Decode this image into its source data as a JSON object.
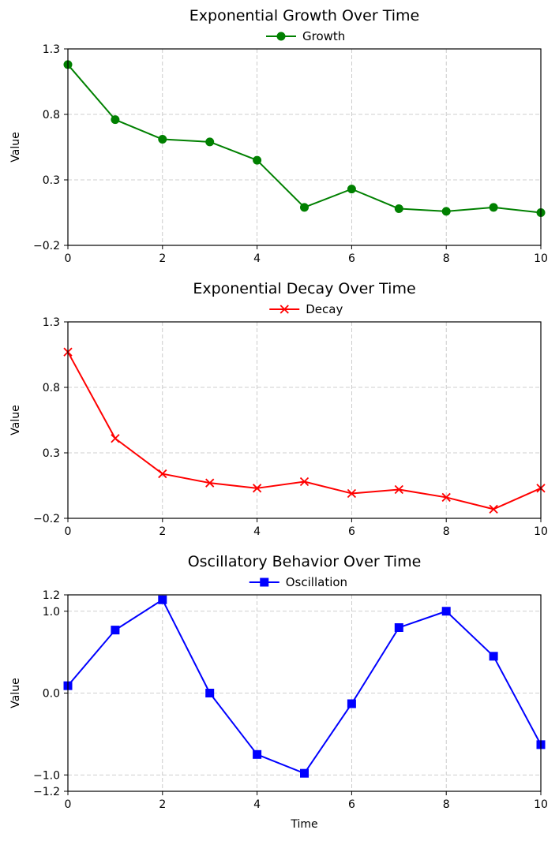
{
  "chart_data": [
    {
      "type": "line",
      "title": "Exponential Growth Over Time",
      "xlabel": "",
      "ylabel": "Value",
      "xlim": [
        0,
        10
      ],
      "ylim": [
        -0.2,
        1.3
      ],
      "xticks": [
        0,
        2,
        4,
        6,
        8,
        10
      ],
      "yticks": [
        -0.2,
        0.3,
        0.8,
        1.3
      ],
      "ytick_labels": [
        "−0.2",
        "0.3",
        "0.8",
        "1.3"
      ],
      "grid": true,
      "legend_position": "top-center",
      "series": [
        {
          "name": "Growth",
          "color": "#008000",
          "marker": "circle",
          "x": [
            0,
            1,
            2,
            3,
            4,
            5,
            6,
            7,
            8,
            9,
            10
          ],
          "y": [
            1.18,
            0.76,
            0.61,
            0.59,
            0.45,
            0.09,
            0.23,
            0.08,
            0.06,
            0.09,
            0.05
          ]
        }
      ]
    },
    {
      "type": "line",
      "title": "Exponential Decay Over Time",
      "xlabel": "",
      "ylabel": "Value",
      "xlim": [
        0,
        10
      ],
      "ylim": [
        -0.2,
        1.3
      ],
      "xticks": [
        0,
        2,
        4,
        6,
        8,
        10
      ],
      "yticks": [
        -0.2,
        0.3,
        0.8,
        1.3
      ],
      "ytick_labels": [
        "−0.2",
        "0.3",
        "0.8",
        "1.3"
      ],
      "grid": true,
      "legend_position": "top-center",
      "series": [
        {
          "name": "Decay",
          "color": "#ff0000",
          "marker": "x",
          "x": [
            0,
            1,
            2,
            3,
            4,
            5,
            6,
            7,
            8,
            9,
            10
          ],
          "y": [
            1.07,
            0.41,
            0.14,
            0.07,
            0.03,
            0.08,
            -0.01,
            0.02,
            -0.04,
            -0.13,
            0.03
          ]
        }
      ]
    },
    {
      "type": "line",
      "title": "Oscillatory Behavior Over Time",
      "xlabel": "Time",
      "ylabel": "Value",
      "xlim": [
        0,
        10
      ],
      "ylim": [
        -1.2,
        1.2
      ],
      "xticks": [
        0,
        2,
        4,
        6,
        8,
        10
      ],
      "yticks": [
        -1.2,
        -1.0,
        0.0,
        1.0,
        1.2
      ],
      "ytick_labels": [
        "−1.2",
        "−1.0",
        "0.0",
        "1.0",
        "1.2"
      ],
      "grid": true,
      "legend_position": "top-center",
      "series": [
        {
          "name": "Oscillation",
          "color": "#0000ff",
          "marker": "square",
          "x": [
            0,
            1,
            2,
            3,
            4,
            5,
            6,
            7,
            8,
            9,
            10
          ],
          "y": [
            0.09,
            0.77,
            1.14,
            0.0,
            -0.75,
            -0.98,
            -0.13,
            0.8,
            1.0,
            0.45,
            -0.63
          ]
        }
      ]
    }
  ]
}
